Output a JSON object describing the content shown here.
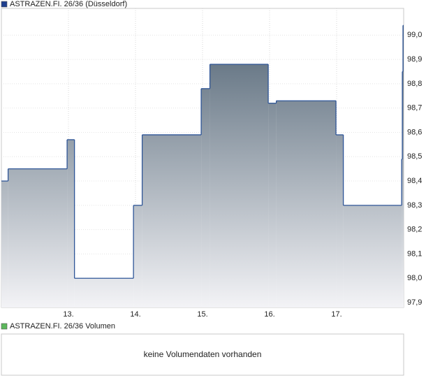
{
  "chart_data": {
    "type": "step",
    "series": [
      {
        "name": "ASTRAZEN.FI. 26/36 (Düsseldorf)",
        "color": "#2e5597",
        "values": [
          98.4,
          98.45,
          98.57,
          98.0,
          98.3,
          98.59,
          98.78,
          98.88,
          98.72,
          98.73,
          98.59,
          98.3,
          98.49,
          98.85,
          99.04
        ]
      }
    ],
    "x": [
      12.0,
      12.1,
      12.98,
      13.09,
      13.97,
      14.1,
      14.98,
      15.11,
      15.98,
      16.1,
      16.99,
      17.1,
      17.97,
      17.98,
      17.99
    ],
    "xlim": [
      12,
      18
    ],
    "xticks": [
      {
        "value": 13,
        "label": "13."
      },
      {
        "value": 14,
        "label": "14."
      },
      {
        "value": 15,
        "label": "15."
      },
      {
        "value": 16,
        "label": "16."
      },
      {
        "value": 17,
        "label": "17."
      }
    ],
    "ylim": [
      97.88,
      99.11
    ],
    "yticks": [
      {
        "value": 97.9,
        "label": "97,9"
      },
      {
        "value": 98.0,
        "label": "98,0"
      },
      {
        "value": 98.1,
        "label": "98,1"
      },
      {
        "value": 98.2,
        "label": "98,2"
      },
      {
        "value": 98.3,
        "label": "98,3"
      },
      {
        "value": 98.4,
        "label": "98,4"
      },
      {
        "value": 98.5,
        "label": "98,5"
      },
      {
        "value": 98.6,
        "label": "98,6"
      },
      {
        "value": 98.7,
        "label": "98,7"
      },
      {
        "value": 98.8,
        "label": "98,8"
      },
      {
        "value": 98.9,
        "label": "98,9"
      },
      {
        "value": 99.0,
        "label": "99,0"
      }
    ],
    "grid": true
  },
  "volume_panel": {
    "legend": "ASTRAZEN.FI. 26/36 Volumen",
    "message": "keine Volumendaten vorhanden"
  }
}
